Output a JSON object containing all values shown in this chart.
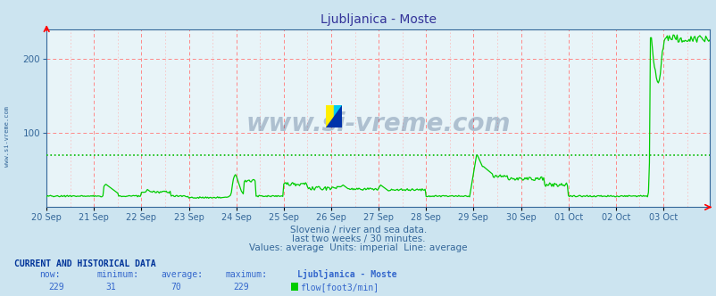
{
  "title": "Ljubljanica - Moste",
  "bg_color": "#cce4f0",
  "plot_bg_color": "#e8f4f8",
  "grid_color_v": "#ff8888",
  "grid_color_h": "#ffaaaa",
  "avg_line_color": "#00bb00",
  "avg_line_value": 70,
  "line_color": "#00cc00",
  "ylim": [
    0,
    240
  ],
  "yticks": [
    100,
    200
  ],
  "xlabel_dates": [
    "20 Sep",
    "21 Sep",
    "22 Sep",
    "23 Sep",
    "24 Sep",
    "25 Sep",
    "26 Sep",
    "27 Sep",
    "28 Sep",
    "29 Sep",
    "30 Sep",
    "01 Oct",
    "02 Oct",
    "03 Oct"
  ],
  "subtitle_line1": "Slovenia / river and sea data.",
  "subtitle_line2": "last two weeks / 30 minutes.",
  "subtitle_line3": "Values: average  Units: imperial  Line: average",
  "footer_label": "CURRENT AND HISTORICAL DATA",
  "footer_cols": [
    "now:",
    "minimum:",
    "average:",
    "maximum:",
    "Ljubljanica - Moste"
  ],
  "footer_vals": [
    "229",
    "31",
    "70",
    "229",
    "flow[foot3/min]"
  ],
  "watermark": "www.si-vreme.com",
  "watermark_color": "#1a3a6a",
  "title_color": "#333399",
  "axis_color": "#336699",
  "subtitle_color": "#336699",
  "footer_header_color": "#003399",
  "footer_val_color": "#3366cc",
  "left_label_color": "#336699"
}
